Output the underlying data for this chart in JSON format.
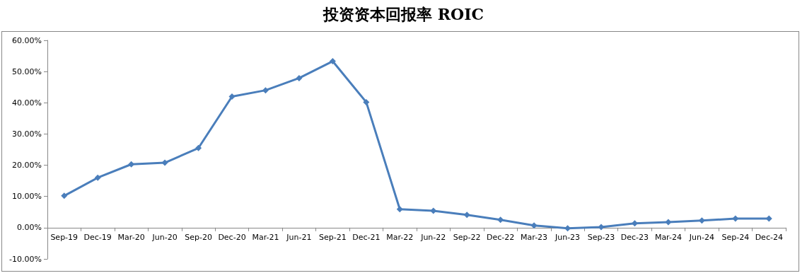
{
  "chart_data": {
    "type": "line",
    "title": "投资资本回报率 ROIC",
    "categories": [
      "Sep-19",
      "Dec-19",
      "Mar-20",
      "Jun-20",
      "Sep-20",
      "Dec-20",
      "Mar-21",
      "Jun-21",
      "Sep-21",
      "Dec-21",
      "Mar-22",
      "Jun-22",
      "Sep-22",
      "Dec-22",
      "Mar-23",
      "Jun-23",
      "Sep-23",
      "Dec-23",
      "Mar-24",
      "Jun-24",
      "Sep-24",
      "Dec-24"
    ],
    "series": [
      {
        "color": "#4a7ebb",
        "values": [
          10.2,
          16.0,
          20.3,
          20.8,
          25.5,
          42.0,
          44.0,
          47.9,
          53.3,
          40.2,
          5.9,
          5.4,
          4.1,
          2.5,
          0.7,
          -0.2,
          0.2,
          1.4,
          1.8,
          2.3,
          2.9,
          2.9
        ]
      }
    ],
    "ylim": [
      -10,
      60
    ],
    "yticks": [
      {
        "value": -10,
        "label": "-10.00%"
      },
      {
        "value": 0,
        "label": "0.00%"
      },
      {
        "value": 10,
        "label": "10.00%"
      },
      {
        "value": 20,
        "label": "20.00%"
      },
      {
        "value": 30,
        "label": "30.00%"
      },
      {
        "value": 40,
        "label": "40.00%"
      },
      {
        "value": 50,
        "label": "50.00%"
      },
      {
        "value": 60,
        "label": "60.00%"
      }
    ],
    "marker": "diamond",
    "line_style": "solid"
  }
}
